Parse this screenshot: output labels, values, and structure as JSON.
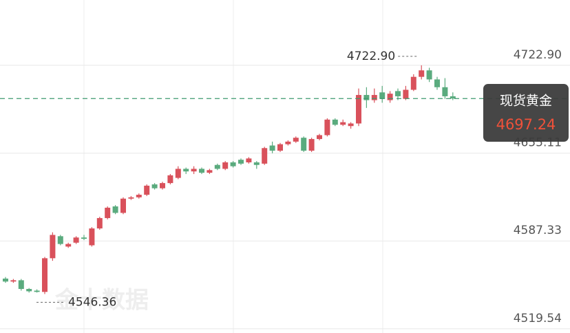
{
  "chart_data": {
    "type": "candlestick",
    "watermark": "金十数据",
    "ylim": [
      4516.3,
      4773.3
    ],
    "yticks": [
      {
        "value": 4722.9,
        "label": "4722.90"
      },
      4655.11,
      4587.33,
      4519.54
    ],
    "grid": true,
    "up_color": "#d9515b",
    "down_color": "#5aab7e",
    "series": [
      {
        "open": [
          4558.3,
          4556,
          4557,
          4550.3,
          4549,
          4548,
          4574,
          4591,
          4583,
          4586,
          4590,
          4584,
          4597,
          4605,
          4614,
          4609,
          4620,
          4621,
          4623,
          4631,
          4628,
          4632,
          4636,
          4643,
          4641,
          4643,
          4640,
          4646,
          4643,
          4648,
          4650,
          4648,
          4648,
          4647,
          4661,
          4657,
          4662,
          4664,
          4667,
          4657,
          4666,
          4669,
          4681,
          4677,
          4676,
          4678,
          4700,
          4696,
          4702,
          4696,
          4703,
          4697,
          4704,
          4714,
          4719,
          4712,
          4706,
          4699
        ],
        "high": [
          4559.5,
          4558,
          4558,
          4551,
          4550,
          4575,
          4594,
          4592,
          4586,
          4591,
          4592,
          4598,
          4606,
          4614,
          4615,
          4621,
          4622,
          4624,
          4631,
          4632,
          4633,
          4639,
          4645,
          4644,
          4645,
          4644,
          4643,
          4647,
          4649,
          4649,
          4651,
          4652,
          4649,
          4660,
          4664,
          4663,
          4665,
          4668,
          4668,
          4667,
          4670,
          4682,
          4682,
          4681,
          4679,
          4705,
          4706,
          4705,
          4707,
          4703,
          4705,
          4707,
          4716,
          4722.9,
          4721,
          4714,
          4713,
          4702
        ],
        "low": [
          4555,
          4555,
          4549,
          4547.5,
          4547.5,
          4546.36,
          4572,
          4584,
          4582,
          4585,
          4588,
          4583,
          4596,
          4604,
          4608,
          4608,
          4619,
          4620,
          4622,
          4627,
          4627,
          4631,
          4635,
          4639,
          4639,
          4639,
          4639,
          4642,
          4642,
          4644,
          4646,
          4647,
          4643,
          4646,
          4655,
          4656,
          4661,
          4663,
          4656,
          4656,
          4665,
          4668,
          4676,
          4676,
          4674,
          4676,
          4690,
          4694,
          4694,
          4694,
          4696,
          4696,
          4703,
          4712,
          4710,
          4704,
          4697,
          4696
        ],
        "close": [
          4556,
          4557,
          4550.3,
          4548.5,
          4548,
          4574,
          4592,
          4585,
          4585,
          4590,
          4589,
          4597,
          4605,
          4613,
          4609,
          4620,
          4621,
          4623,
          4630,
          4628,
          4632,
          4638,
          4643,
          4641,
          4643,
          4640,
          4642,
          4643,
          4648,
          4645,
          4647,
          4651,
          4646,
          4659,
          4657,
          4662,
          4664,
          4667,
          4657,
          4666,
          4669,
          4681,
          4677,
          4679,
          4678,
          4700,
          4696,
          4700,
          4697,
          4701,
          4699,
          4704,
          4714,
          4719,
          4712,
          4706,
          4699,
          4697.24
        ]
      }
    ],
    "max_annotation": {
      "value": 4722.9,
      "label": "4722.90"
    },
    "min_annotation": 4546.36,
    "last_price": {
      "name": "现货黄金",
      "value": 4697.24,
      "color": "#3c9a6e",
      "value_color": "#f0513a"
    }
  }
}
